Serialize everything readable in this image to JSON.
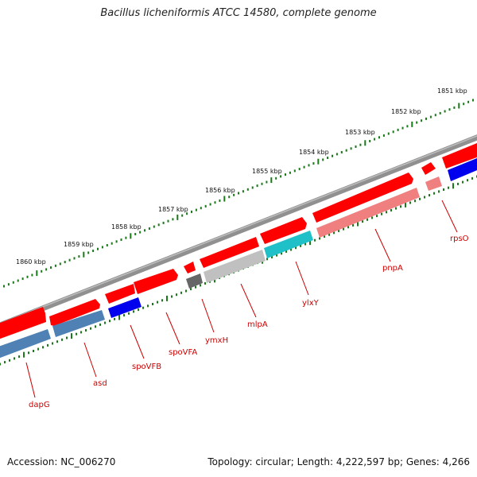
{
  "title": "Bacillus licheniformis ATCC 14580, complete genome",
  "footer": {
    "accession": "Accession: NC_006270",
    "summary": "Topology: circular; Length: 4,222,597 bp; Genes: 4,266"
  },
  "kbp_labels": [
    "1851 kbp",
    "1852 kbp",
    "1853 kbp",
    "1854 kbp",
    "1855 kbp",
    "1856 kbp",
    "1857 kbp",
    "1858 kbp",
    "1859 kbp",
    "1860 kbp"
  ],
  "genes": [
    {
      "name": "dapG",
      "color": "#4f81b5"
    },
    {
      "name": "asd",
      "color": "#4f81b5"
    },
    {
      "name": "spoVFB",
      "color": "#0000ee"
    },
    {
      "name": "spoVFA",
      "color": "#ff0000"
    },
    {
      "name": "ymxH",
      "color": "#666666"
    },
    {
      "name": "mlpA",
      "color": "#c0c0c0"
    },
    {
      "name": "ylxY",
      "color": "#20c0c8"
    },
    {
      "name": "pnpA",
      "color": "#f08080"
    },
    {
      "name": "rpsO",
      "color": "#f08080"
    }
  ],
  "colors": {
    "backbone": "#808080",
    "forward_strand": "#ff0000",
    "tick": "#1a7a1a",
    "label": "#cc0000"
  }
}
